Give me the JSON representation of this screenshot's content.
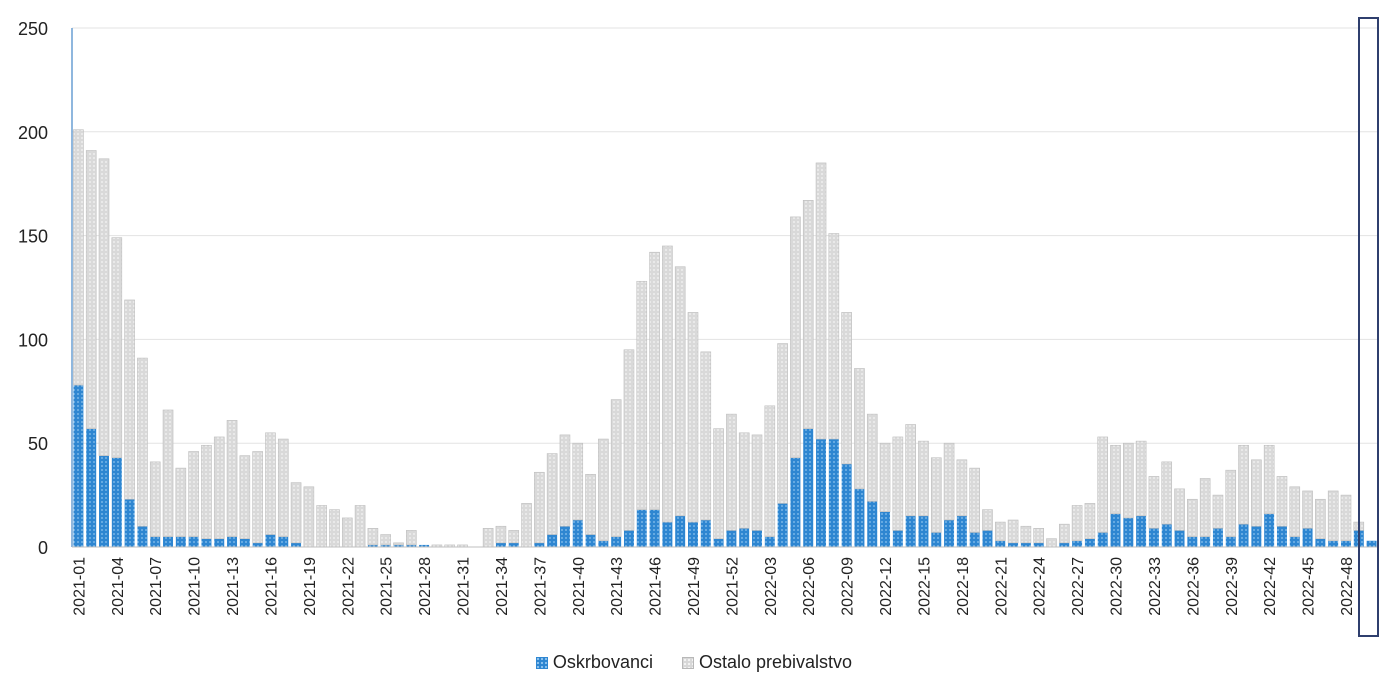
{
  "chart_data": {
    "type": "bar",
    "stacked": true,
    "ylim": [
      0,
      250
    ],
    "y_ticks": [
      0,
      50,
      100,
      150,
      200,
      250
    ],
    "grid": true,
    "legend_position": "bottom",
    "categories": [
      "2021-01",
      "2021-02",
      "2021-03",
      "2021-04",
      "2021-05",
      "2021-06",
      "2021-07",
      "2021-08",
      "2021-09",
      "2021-10",
      "2021-11",
      "2021-12",
      "2021-13",
      "2021-14",
      "2021-15",
      "2021-16",
      "2021-17",
      "2021-18",
      "2021-19",
      "2021-20",
      "2021-21",
      "2021-22",
      "2021-23",
      "2021-24",
      "2021-25",
      "2021-26",
      "2021-27",
      "2021-28",
      "2021-29",
      "2021-30",
      "2021-31",
      "2021-32",
      "2021-33",
      "2021-34",
      "2021-35",
      "2021-36",
      "2021-37",
      "2021-38",
      "2021-39",
      "2021-40",
      "2021-41",
      "2021-42",
      "2021-43",
      "2021-44",
      "2021-45",
      "2021-46",
      "2021-47",
      "2021-48",
      "2021-49",
      "2021-50",
      "2021-51",
      "2021-52",
      "2022-01",
      "2022-02",
      "2022-03",
      "2022-04",
      "2022-05",
      "2022-06",
      "2022-07",
      "2022-08",
      "2022-09",
      "2022-10",
      "2022-11",
      "2022-12",
      "2022-13",
      "2022-14",
      "2022-15",
      "2022-16",
      "2022-17",
      "2022-18",
      "2022-19",
      "2022-20",
      "2022-21",
      "2022-22",
      "2022-23",
      "2022-24",
      "2022-25",
      "2022-26",
      "2022-27",
      "2022-28",
      "2022-29",
      "2022-30",
      "2022-31",
      "2022-32",
      "2022-33",
      "2022-34",
      "2022-35",
      "2022-36",
      "2022-37",
      "2022-38",
      "2022-39",
      "2022-40",
      "2022-41",
      "2022-42",
      "2022-43",
      "2022-44",
      "2022-45",
      "2022-46",
      "2022-47",
      "2022-48",
      "2022-49",
      "2022-50"
    ],
    "x_tick_labels": [
      "2021-01",
      "2021-04",
      "2021-07",
      "2021-10",
      "2021-13",
      "2021-16",
      "2021-19",
      "2021-22",
      "2021-25",
      "2021-28",
      "2021-31",
      "2021-34",
      "2021-37",
      "2021-40",
      "2021-43",
      "2021-46",
      "2021-49",
      "2021-52",
      "2022-03",
      "2022-06",
      "2022-09",
      "2022-12",
      "2022-15",
      "2022-18",
      "2022-21",
      "2022-24",
      "2022-27",
      "2022-30",
      "2022-33",
      "2022-36",
      "2022-39",
      "2022-42",
      "2022-45",
      "2022-48"
    ],
    "series": [
      {
        "name": "Oskrbovanci",
        "color": "#2e86d1",
        "values": [
          78,
          57,
          44,
          43,
          23,
          10,
          5,
          5,
          5,
          5,
          4,
          4,
          5,
          4,
          2,
          6,
          5,
          2,
          0,
          0,
          0,
          0,
          0,
          1,
          1,
          1,
          1,
          1,
          0,
          0,
          0,
          0,
          0,
          2,
          2,
          0,
          2,
          6,
          10,
          13,
          6,
          3,
          5,
          8,
          18,
          18,
          12,
          15,
          12,
          13,
          4,
          8,
          9,
          8,
          5,
          21,
          43,
          57,
          52,
          52,
          40,
          28,
          22,
          17,
          8,
          15,
          15,
          7,
          13,
          15,
          7,
          8,
          3,
          2,
          2,
          2,
          0,
          2,
          3,
          4,
          7,
          16,
          14,
          15,
          9,
          11,
          8,
          5,
          5,
          9,
          5,
          11,
          10,
          16,
          10,
          5,
          9,
          4,
          3,
          3,
          8,
          3
        ]
      },
      {
        "name": "Ostalo prebivalstvo",
        "color": "#d7d7d7",
        "values": [
          123,
          134,
          143,
          106,
          96,
          81,
          36,
          61,
          33,
          41,
          45,
          49,
          56,
          40,
          44,
          49,
          47,
          29,
          29,
          20,
          18,
          14,
          20,
          8,
          5,
          1,
          7,
          0,
          1,
          1,
          1,
          0,
          9,
          8,
          6,
          21,
          34,
          39,
          44,
          37,
          29,
          49,
          66,
          87,
          110,
          124,
          133,
          120,
          101,
          81,
          53,
          56,
          46,
          46,
          63,
          77,
          116,
          110,
          133,
          99,
          73,
          58,
          42,
          33,
          45,
          44,
          36,
          36,
          37,
          27,
          31,
          10,
          9,
          11,
          8,
          7,
          4,
          9,
          17,
          17,
          46,
          33,
          36,
          36,
          25,
          30,
          20,
          18,
          28,
          16,
          32,
          38,
          32,
          33,
          24,
          24,
          18,
          19,
          24,
          22,
          4,
          0
        ]
      }
    ]
  },
  "legend": {
    "items": [
      {
        "label": "Oskrbovanci",
        "icon": "blue-dotted-swatch-icon"
      },
      {
        "label": "Ostalo prebivalstvo",
        "icon": "grey-dotted-swatch-icon"
      }
    ]
  },
  "highlight": {
    "color": "#2f3f6e"
  }
}
